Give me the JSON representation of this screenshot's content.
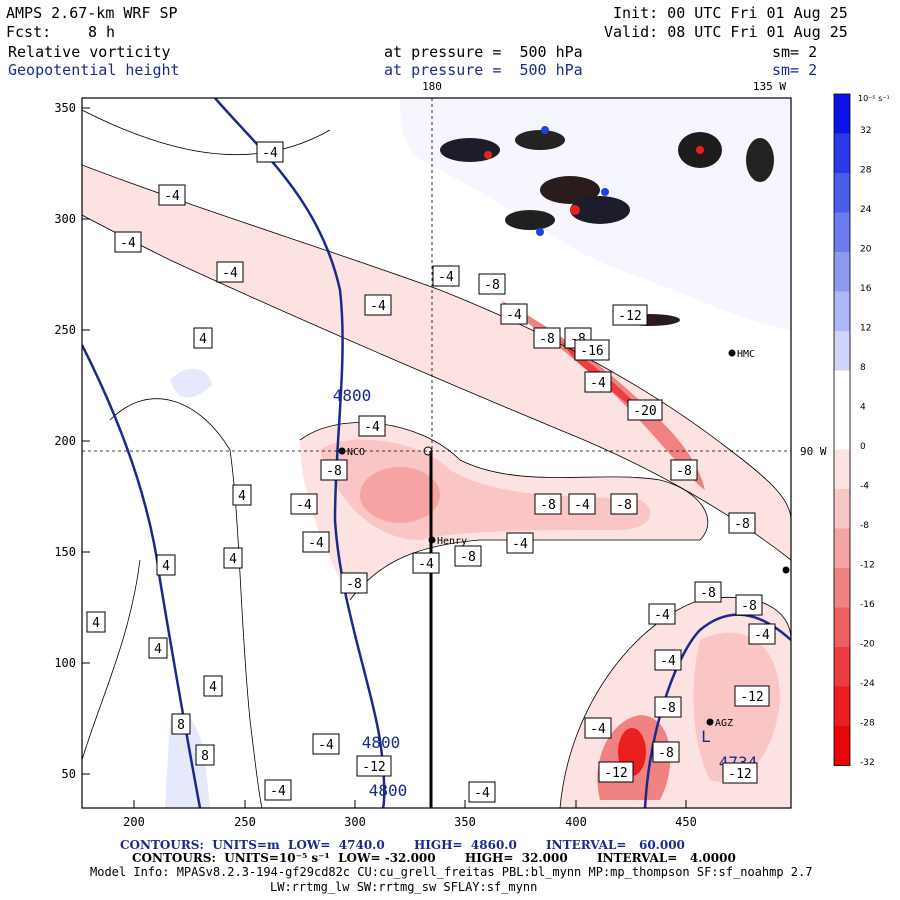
{
  "header": {
    "model": "AMPS 2.67-km WRF SP",
    "init": "Init: 00 UTC Fri 01 Aug 25",
    "fcst_label": "Fcst:",
    "fcst_value": "8 h",
    "valid": "Valid: 08 UTC Fri 01 Aug 25",
    "field1": "Relative vorticity",
    "field1_level": "at pressure =  500 hPa",
    "field1_sm": "sm= 2",
    "field2": "Geopotential height",
    "field2_level": "at pressure =  500 hPa",
    "field2_sm": "sm= 2"
  },
  "map": {
    "lon_labels": [
      "180",
      "135 W",
      "90 W"
    ],
    "stations": [
      "NCO",
      "Henry",
      "HMC",
      "AGZ"
    ],
    "xticks": [
      "200",
      "250",
      "300",
      "350",
      "400",
      "450"
    ],
    "yticks": [
      "350",
      "300",
      "250",
      "200",
      "150",
      "100",
      "50"
    ],
    "height_labels": [
      "4800",
      "4800",
      "4800",
      "4734"
    ],
    "low_label": "L",
    "vort_contour_labels": [
      "-4",
      "-4",
      "-4",
      "-4",
      "-4",
      "4",
      "4",
      "4",
      "4",
      "4",
      "4",
      "4",
      "8",
      "8",
      "-4",
      "-8",
      "-4",
      "-8",
      "-8",
      "-12",
      "-16",
      "-4",
      "-20",
      "-4",
      "-8",
      "-4",
      "-4",
      "-8",
      "-4",
      "-8",
      "-4",
      "-8",
      "-4",
      "-8",
      "-8",
      "-8",
      "-4",
      "-8",
      "-8",
      "-4",
      "-12",
      "-8",
      "-4",
      "-4",
      "-8",
      "-12",
      "-4",
      "-12",
      "-4",
      "-12",
      "-4"
    ]
  },
  "colorbar": {
    "unit": "10⁻⁵ s⁻¹",
    "labels": [
      "32",
      "28",
      "24",
      "20",
      "16",
      "12",
      "8",
      "4",
      "0",
      "-4",
      "-8",
      "-12",
      "-16",
      "-20",
      "-24",
      "-28",
      "-32"
    ],
    "colors": [
      "#0a14e6",
      "#2a3ae8",
      "#4b5cec",
      "#6c7cef",
      "#8d9af2",
      "#aeb8f6",
      "#d0d6fa",
      "#ffffff",
      "#ffffff",
      "#fde2e2",
      "#f9c5c5",
      "#f5a3a3",
      "#f18282",
      "#ee6060",
      "#ec3e3e",
      "#ea1e1e",
      "#e80606"
    ]
  },
  "footer": {
    "line1": "CONTOURS:  UNITS=m  LOW=  4740.0       HIGH=  4860.0       INTERVAL=   60.000",
    "line2": "CONTOURS:  UNITS=10⁻⁵ s⁻¹  LOW= -32.000       HIGH=  32.000       INTERVAL=   4.0000",
    "line3": "Model Info: MPASv8.2.3-194-gf29cd82c CU:cu_grell_freitas PBL:bl_mynn MP:mp_thompson SF:sf_noahmp 2.7",
    "line4": "LW:rrtmg_lw SW:rrtmg_sw SFLAY:sf_mynn"
  }
}
